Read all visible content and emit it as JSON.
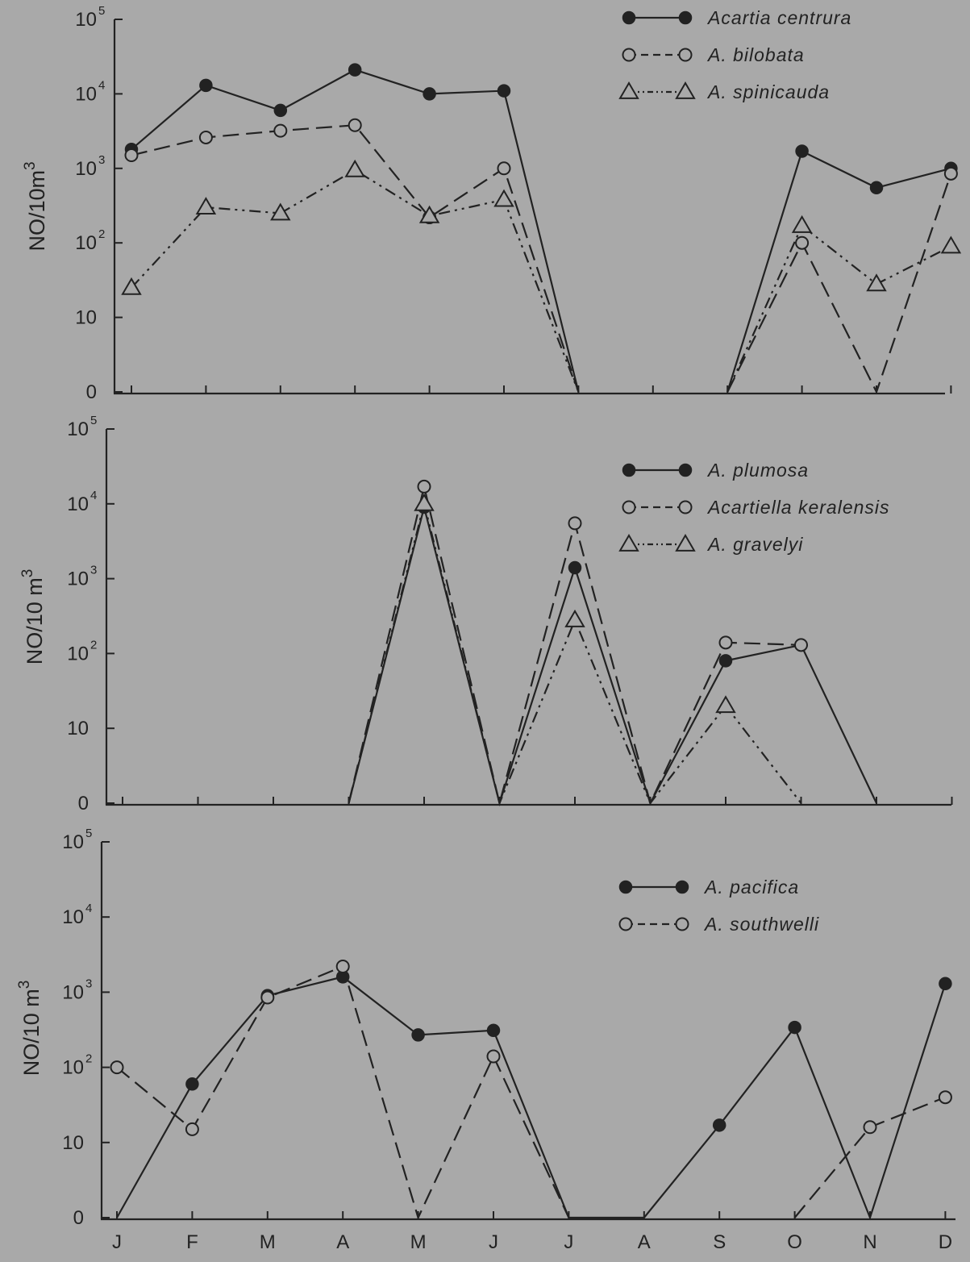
{
  "chart_data": [
    {
      "type": "line",
      "title": "",
      "xlabel": "",
      "ylabel": "NO/10m",
      "ylabel_sup": "3",
      "yscale": "log (0 at base)",
      "ylim": [
        0,
        100000
      ],
      "yticks": [
        {
          "base": "0",
          "exp": ""
        },
        {
          "base": "10",
          "exp": ""
        },
        {
          "base": "10",
          "exp": "2"
        },
        {
          "base": "10",
          "exp": "3"
        },
        {
          "base": "10",
          "exp": "4"
        },
        {
          "base": "10",
          "exp": "5"
        }
      ],
      "categories": [
        "J",
        "F",
        "M",
        "A",
        "M",
        "J",
        "J",
        "A",
        "S",
        "O",
        "N",
        "D"
      ],
      "show_category_labels": false,
      "grid": false,
      "legend_position": "top-right",
      "series": [
        {
          "name": "Acartia centrura",
          "marker": "filled-circle",
          "dash": "solid",
          "values": [
            1800,
            13000,
            6000,
            21000,
            10000,
            11000,
            0,
            null,
            0,
            1700,
            550,
            1000
          ]
        },
        {
          "name": "A. bilobata",
          "marker": "open-circle",
          "dash": "dashed",
          "values": [
            1500,
            2600,
            3200,
            3800,
            220,
            1000,
            0,
            null,
            0,
            100,
            0,
            850
          ]
        },
        {
          "name": "A. spinicauda",
          "marker": "open-triangle",
          "dash": "dash-dot-dot",
          "values": [
            25,
            300,
            250,
            950,
            230,
            380,
            0,
            null,
            0,
            170,
            28,
            90
          ]
        }
      ]
    },
    {
      "type": "line",
      "title": "",
      "xlabel": "",
      "ylabel": "NO/10 m",
      "ylabel_sup": "3",
      "yscale": "log (0 at base)",
      "ylim": [
        0,
        100000
      ],
      "yticks": [
        {
          "base": "0",
          "exp": ""
        },
        {
          "base": "10",
          "exp": ""
        },
        {
          "base": "10",
          "exp": "2"
        },
        {
          "base": "10",
          "exp": "3"
        },
        {
          "base": "10",
          "exp": "4"
        },
        {
          "base": "10",
          "exp": "5"
        }
      ],
      "categories": [
        "J",
        "F",
        "M",
        "A",
        "M",
        "J",
        "J",
        "A",
        "S",
        "O",
        "N",
        "D"
      ],
      "show_category_labels": false,
      "grid": false,
      "legend_position": "top-right",
      "series": [
        {
          "name": "A. plumosa",
          "marker": "filled-circle",
          "dash": "solid",
          "values": [
            null,
            null,
            null,
            0,
            9000,
            0,
            1400,
            0,
            80,
            130,
            0,
            null
          ]
        },
        {
          "name": "Acartiella keralensis",
          "marker": "open-circle",
          "dash": "dashed",
          "values": [
            null,
            null,
            null,
            0,
            17000,
            0,
            5500,
            0,
            140,
            130,
            null,
            null
          ]
        },
        {
          "name": "A. gravelyi",
          "marker": "open-triangle",
          "dash": "dash-dot-dot",
          "values": [
            null,
            null,
            null,
            0,
            10000,
            0,
            280,
            0,
            20,
            0,
            null,
            null
          ]
        }
      ]
    },
    {
      "type": "line",
      "title": "",
      "xlabel": "",
      "ylabel": "NO/10 m",
      "ylabel_sup": "3",
      "yscale": "log (0 at base)",
      "ylim": [
        0,
        100000
      ],
      "yticks": [
        {
          "base": "0",
          "exp": ""
        },
        {
          "base": "10",
          "exp": ""
        },
        {
          "base": "10",
          "exp": "2"
        },
        {
          "base": "10",
          "exp": "3"
        },
        {
          "base": "10",
          "exp": "4"
        },
        {
          "base": "10",
          "exp": "5"
        }
      ],
      "categories": [
        "J",
        "F",
        "M",
        "A",
        "M",
        "J",
        "J",
        "A",
        "S",
        "O",
        "N",
        "D"
      ],
      "show_category_labels": true,
      "grid": false,
      "legend_position": "top-right",
      "series": [
        {
          "name": "A. pacifica",
          "marker": "filled-circle",
          "dash": "solid",
          "values": [
            0,
            60,
            900,
            1600,
            270,
            310,
            0,
            0,
            17,
            340,
            0,
            1300
          ]
        },
        {
          "name": "A. southwelli",
          "marker": "open-circle",
          "dash": "dashed",
          "values": [
            100,
            15,
            850,
            2200,
            0,
            140,
            0,
            null,
            null,
            0,
            16,
            40
          ]
        }
      ]
    }
  ],
  "colors": {
    "background": "#a9a9a9",
    "ink": "#222222"
  }
}
